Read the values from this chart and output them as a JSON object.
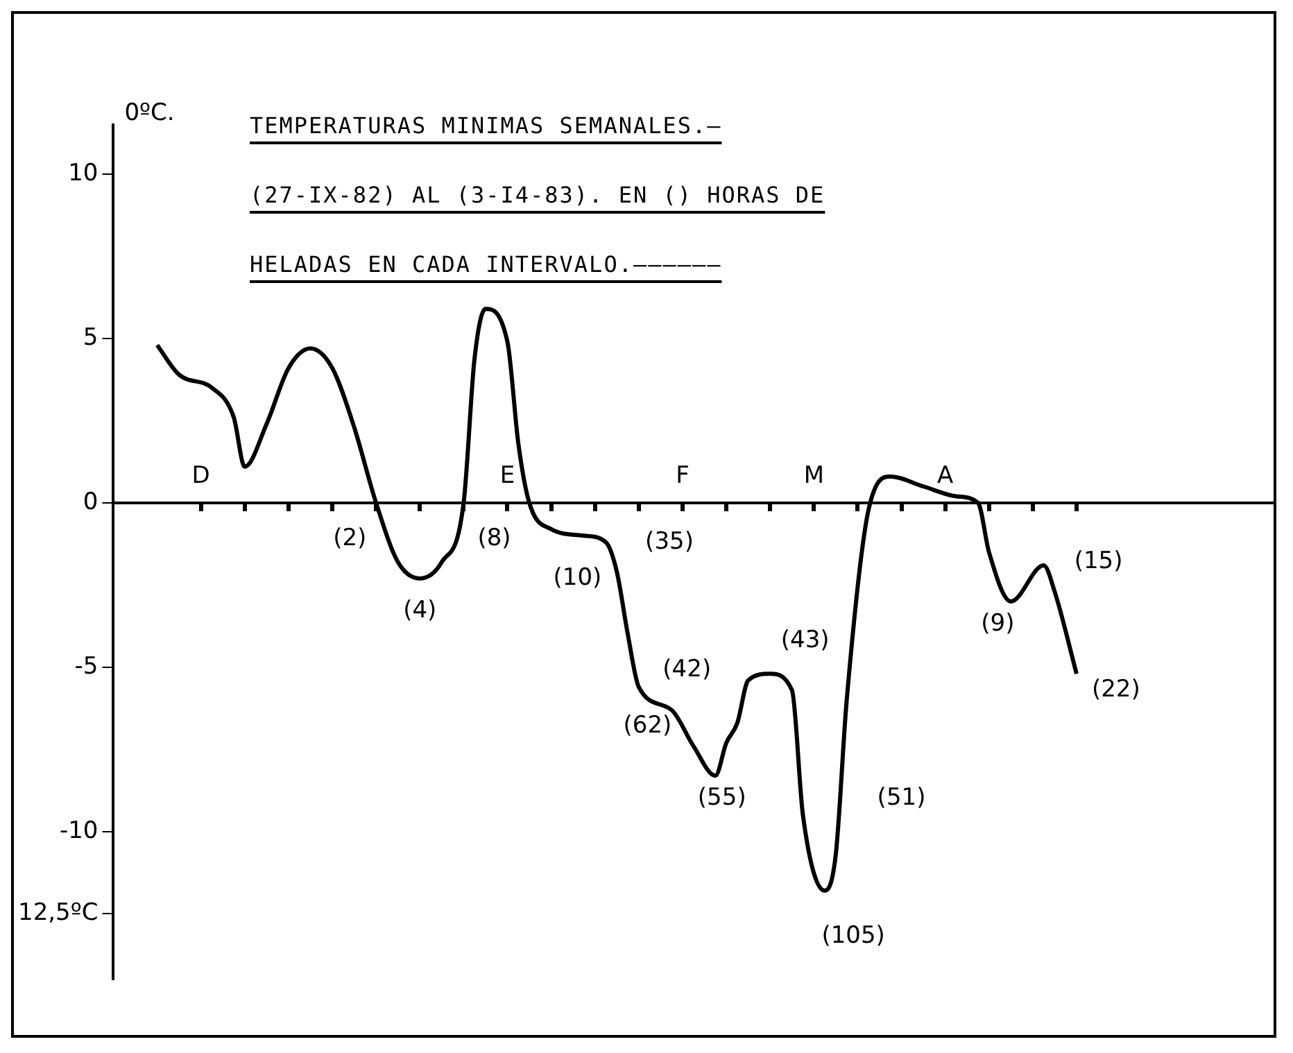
{
  "chart_data": {
    "type": "line",
    "title": "TEMPERATURAS MINIMAS SEMANALES.—\n(27-IX-82) AL (3-I4-83). EN () HORAS DE\nHELADAS EN CADA INTERVALO.——————",
    "ylabel": "0ºC.",
    "categories": [
      null,
      null,
      null,
      null,
      null,
      null,
      null,
      null,
      "D",
      null,
      null,
      null,
      null,
      null,
      null,
      null,
      null,
      null,
      null,
      null,
      null,
      null,
      null,
      null,
      null,
      null,
      null,
      null,
      null,
      null,
      null,
      null,
      null,
      null,
      null,
      null,
      "E",
      null,
      null,
      null,
      null,
      null,
      null,
      null,
      null,
      null,
      null,
      null,
      null,
      null,
      null,
      null,
      "F",
      null,
      null,
      null,
      null,
      null,
      null,
      null,
      null,
      null,
      null,
      null,
      "M",
      null,
      null,
      null,
      null,
      null,
      null,
      null,
      null,
      null,
      null,
      null,
      "A",
      null,
      null,
      null,
      null,
      null,
      null,
      null,
      null,
      null,
      null,
      null,
      null,
      null,
      null,
      null,
      null,
      null,
      null,
      null,
      null,
      null,
      null,
      null,
      null,
      null,
      null,
      null,
      null,
      null,
      null
    ],
    "series": [
      {
        "color": "#000000",
        "values": [
          null,
          null,
          null,
          null,
          4.8,
          null,
          3.9,
          null,
          null,
          3.5,
          null,
          2.6,
          1.1,
          null,
          2.4,
          null,
          4.1,
          null,
          4.7,
          null,
          4.1,
          null,
          2.3,
          null,
          0,
          null,
          -1.8,
          null,
          -2.3,
          null,
          -1.8,
          null,
          0,
          4.4,
          5.9,
          null,
          4.9,
          1.8,
          0,
          null,
          -0.8,
          null,
          null,
          -1.0,
          null,
          -1.2,
          -2.1,
          -4.0,
          -5.6,
          null,
          null,
          -6.3,
          null,
          -7.4,
          null,
          -8.3,
          -7.3,
          -6.7,
          -5.4,
          null,
          -5.2,
          null,
          -5.7,
          -9.5,
          null,
          -11.8,
          -10.7,
          -6.0,
          null,
          -0.2,
          null,
          0.8,
          null,
          null,
          0.5,
          null,
          null,
          0.2,
          null,
          0,
          -1.5,
          null,
          -3.0,
          null,
          null,
          -1.9,
          -2.7,
          null,
          -5.2,
          null,
          null,
          null,
          null,
          null,
          null,
          null,
          null,
          null,
          null,
          null,
          null,
          null,
          null,
          null,
          null,
          null,
          null
        ]
      }
    ],
    "ylim": [
      -14.5,
      11.5
    ],
    "yticks": [
      10,
      5,
      0,
      -5,
      -10,
      {
        "value": -12.5,
        "label": "12,5ºC"
      }
    ],
    "grid": false,
    "marker": "none",
    "annotations": [
      "(2)",
      "(4)",
      "(8)",
      "(10)",
      "(35)",
      "(42)",
      "(62)",
      "(55)",
      "(43)",
      "(105)",
      "(51)",
      "(9)",
      "(15)",
      "(22)"
    ]
  }
}
